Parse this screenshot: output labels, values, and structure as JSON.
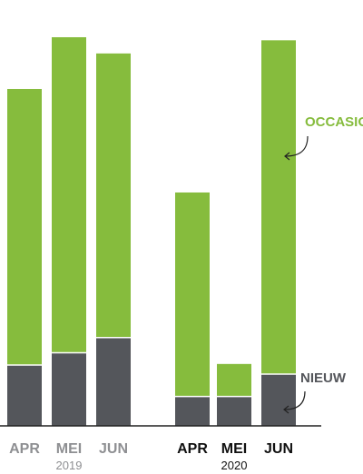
{
  "chart_data": {
    "type": "bar",
    "stacked": true,
    "categories": [
      "APR",
      "MEI",
      "JUN",
      "APR",
      "MEI",
      "JUN"
    ],
    "category_groups": [
      {
        "label": "2019",
        "indices": [
          0,
          1,
          2
        ]
      },
      {
        "label": "2020",
        "indices": [
          3,
          4,
          5
        ]
      }
    ],
    "series": [
      {
        "name": "NIEUW",
        "values": [
          60,
          72,
          87,
          29,
          29,
          51
        ],
        "color": "#54565b"
      },
      {
        "name": "OCCASION",
        "values": [
          272,
          311,
          280,
          201,
          32,
          329
        ],
        "color": "#86bc3d"
      }
    ],
    "ylim": [
      0,
      400
    ],
    "grid": false,
    "legend_placement": "right-annotations",
    "emphasis_colors": {
      "previous_year": "#8e8f92",
      "current_year": "#111111"
    }
  }
}
